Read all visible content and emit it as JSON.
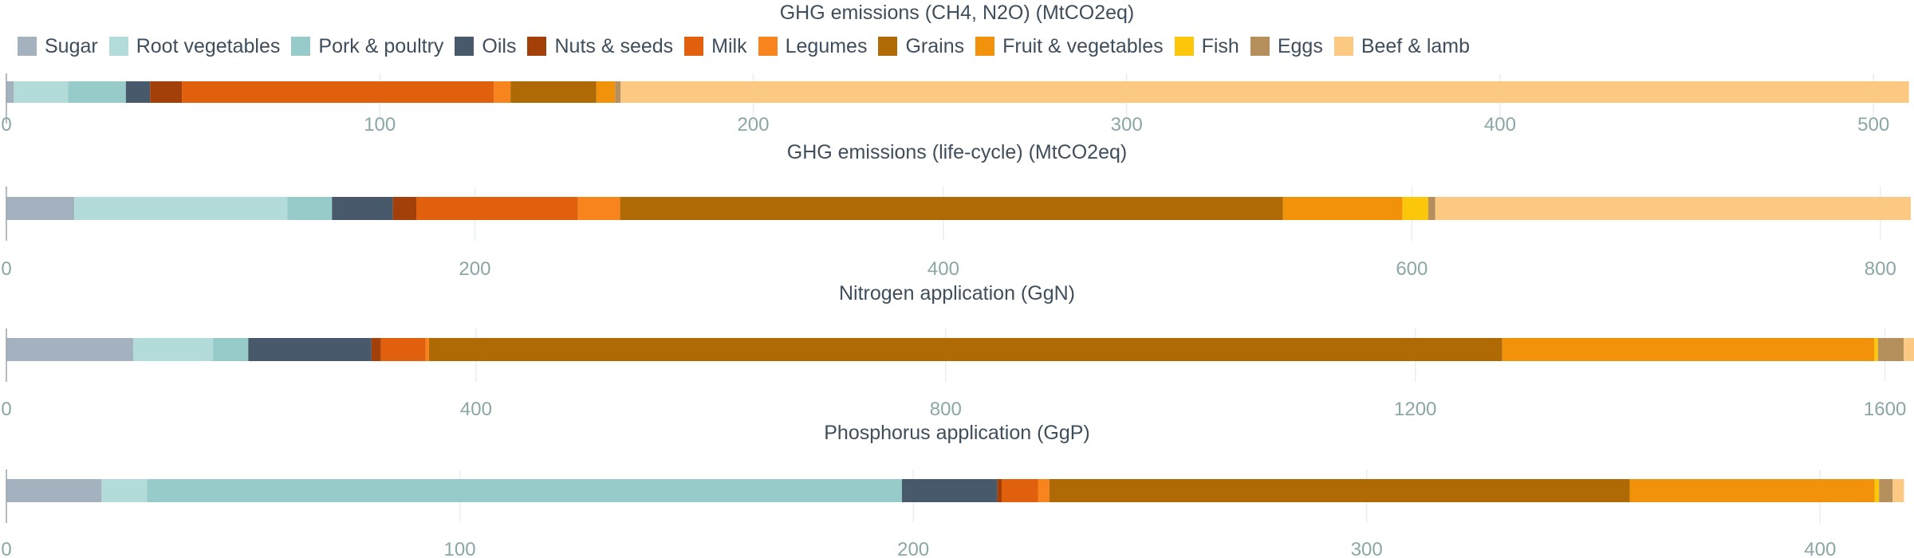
{
  "chart_data": {
    "type": "bar",
    "orientation": "horizontal",
    "stacked": true,
    "legend": {
      "position": "top",
      "entries": [
        {
          "name": "Sugar",
          "color": "#a3b2be"
        },
        {
          "name": "Root vegetables",
          "color": "#b3dbda"
        },
        {
          "name": "Pork & poultry",
          "color": "#96cbca"
        },
        {
          "name": "Oils",
          "color": "#47596a"
        },
        {
          "name": "Nuts & seeds",
          "color": "#a3400a"
        },
        {
          "name": "Milk",
          "color": "#e0600d"
        },
        {
          "name": "Legumes",
          "color": "#f7841d"
        },
        {
          "name": "Grains",
          "color": "#b06a05"
        },
        {
          "name": "Fruit & vegetables",
          "color": "#f2920b"
        },
        {
          "name": "Fish",
          "color": "#fcc60a"
        },
        {
          "name": "Eggs",
          "color": "#b58f5c"
        },
        {
          "name": "Beef & lamb",
          "color": "#fbc982"
        }
      ]
    },
    "panels": [
      {
        "title": "GHG emissions (CH4, N2O) (MtCO2eq)",
        "xlim": [
          0,
          510
        ],
        "ticks": [
          0,
          100,
          200,
          300,
          400,
          500
        ],
        "tick_labels": [
          "0",
          "100",
          "200",
          "300",
          "400",
          "500"
        ],
        "segments": [
          {
            "name": "Sugar",
            "value": 2
          },
          {
            "name": "Root vegetables",
            "value": 14.5
          },
          {
            "name": "Pork & poultry",
            "value": 15.5
          },
          {
            "name": "Oils",
            "value": 6.5
          },
          {
            "name": "Nuts & seeds",
            "value": 8.5
          },
          {
            "name": "Milk",
            "value": 83.5
          },
          {
            "name": "Legumes",
            "value": 4.5
          },
          {
            "name": "Grains",
            "value": 23
          },
          {
            "name": "Fruit & vegetables",
            "value": 5
          },
          {
            "name": "Fish",
            "value": 0
          },
          {
            "name": "Eggs",
            "value": 1.5
          },
          {
            "name": "Beef & lamb",
            "value": 345
          }
        ]
      },
      {
        "title": "GHG emissions (life-cycle) (MtCO2eq)",
        "xlim": [
          0,
          813
        ],
        "ticks": [
          0,
          200,
          400,
          600,
          800
        ],
        "tick_labels": [
          "0",
          "200",
          "400",
          "600",
          "800"
        ],
        "segments": [
          {
            "name": "Sugar",
            "value": 29
          },
          {
            "name": "Root vegetables",
            "value": 91
          },
          {
            "name": "Pork & poultry",
            "value": 19
          },
          {
            "name": "Oils",
            "value": 26
          },
          {
            "name": "Nuts & seeds",
            "value": 10
          },
          {
            "name": "Milk",
            "value": 69
          },
          {
            "name": "Legumes",
            "value": 18
          },
          {
            "name": "Grains",
            "value": 283
          },
          {
            "name": "Fruit & vegetables",
            "value": 51
          },
          {
            "name": "Fish",
            "value": 11
          },
          {
            "name": "Eggs",
            "value": 3
          },
          {
            "name": "Beef & lamb",
            "value": 203
          }
        ]
      },
      {
        "title": "Nitrogen application (GgN)",
        "xlim": [
          0,
          1622
        ],
        "ticks": [
          0,
          400,
          800,
          1200,
          1600
        ],
        "tick_labels": [
          "0",
          "400",
          "800",
          "1200",
          "1600"
        ],
        "segments": [
          {
            "name": "Sugar",
            "value": 108
          },
          {
            "name": "Root vegetables",
            "value": 68
          },
          {
            "name": "Pork & poultry",
            "value": 30
          },
          {
            "name": "Oils",
            "value": 105
          },
          {
            "name": "Nuts & seeds",
            "value": 8
          },
          {
            "name": "Milk",
            "value": 38
          },
          {
            "name": "Legumes",
            "value": 3
          },
          {
            "name": "Grains",
            "value": 914
          },
          {
            "name": "Fruit & vegetables",
            "value": 317
          },
          {
            "name": "Fish",
            "value": 3
          },
          {
            "name": "Eggs",
            "value": 22
          },
          {
            "name": "Beef & lamb",
            "value": 11
          }
        ]
      },
      {
        "title": "Phosphorus application (GgP)",
        "xlim": [
          0,
          420
        ],
        "ticks": [
          0,
          100,
          200,
          300,
          400
        ],
        "tick_labels": [
          "0",
          "100",
          "200",
          "300",
          "400"
        ],
        "segments": [
          {
            "name": "Sugar",
            "value": 21
          },
          {
            "name": "Root vegetables",
            "value": 10
          },
          {
            "name": "Pork & poultry",
            "value": 166.5
          },
          {
            "name": "Oils",
            "value": 21
          },
          {
            "name": "Nuts & seeds",
            "value": 1
          },
          {
            "name": "Milk",
            "value": 8
          },
          {
            "name": "Legumes",
            "value": 2.5
          },
          {
            "name": "Grains",
            "value": 128
          },
          {
            "name": "Fruit & vegetables",
            "value": 54
          },
          {
            "name": "Fish",
            "value": 1
          },
          {
            "name": "Eggs",
            "value": 3
          },
          {
            "name": "Beef & lamb",
            "value": 2.5
          }
        ]
      }
    ]
  }
}
